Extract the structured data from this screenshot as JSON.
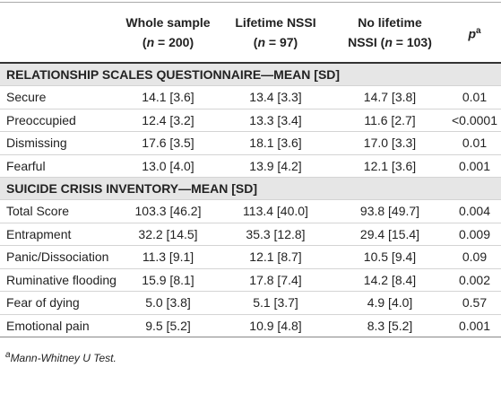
{
  "table": {
    "header": {
      "columns": [
        {
          "line1": "Whole sample",
          "line2": [
            "(",
            "n",
            " = 200)"
          ]
        },
        {
          "line1": "Lifetime NSSI",
          "line2": [
            "(",
            "n",
            " = 97)"
          ]
        },
        {
          "line1": "No lifetime",
          "line2": [
            "NSSI (",
            "n",
            " = 103)"
          ]
        }
      ],
      "p": {
        "text": "p",
        "sup": "a"
      }
    },
    "sections": [
      {
        "title": "RELATIONSHIP SCALES QUESTIONNAIRE—MEAN [SD]",
        "rows": [
          [
            "Secure",
            "14.1 [3.6]",
            "13.4 [3.3]",
            "14.7 [3.8]",
            "0.01"
          ],
          [
            "Preoccupied",
            "12.4 [3.2]",
            "13.3 [3.4]",
            "11.6 [2.7]",
            "<0.0001"
          ],
          [
            "Dismissing",
            "17.6 [3.5]",
            "18.1 [3.6]",
            "17.0 [3.3]",
            "0.01"
          ],
          [
            "Fearful",
            "13.0 [4.0]",
            "13.9 [4.2]",
            "12.1 [3.6]",
            "0.001"
          ]
        ]
      },
      {
        "title": "SUICIDE CRISIS INVENTORY—MEAN [SD]",
        "rows": [
          [
            "Total Score",
            "103.3 [46.2]",
            "113.4 [40.0]",
            "93.8 [49.7]",
            "0.004"
          ],
          [
            "Entrapment",
            "32.2 [14.5]",
            "35.3 [12.8]",
            "29.4 [15.4]",
            "0.009"
          ],
          [
            "Panic/Dissociation",
            "11.3 [9.1]",
            "12.1 [8.7]",
            "10.5 [9.4]",
            "0.09"
          ],
          [
            "Ruminative flooding",
            "15.9 [8.1]",
            "17.8 [7.4]",
            "14.2 [8.4]",
            "0.002"
          ],
          [
            "Fear of dying",
            "5.0 [3.8]",
            "5.1 [3.7]",
            "4.9 [4.0]",
            "0.57"
          ],
          [
            "Emotional pain",
            "9.5 [5.2]",
            "10.9 [4.8]",
            "8.3 [5.2]",
            "0.001"
          ]
        ]
      }
    ],
    "footnote": {
      "mark": "a",
      "text": "Mann-Whitney U Test."
    }
  }
}
